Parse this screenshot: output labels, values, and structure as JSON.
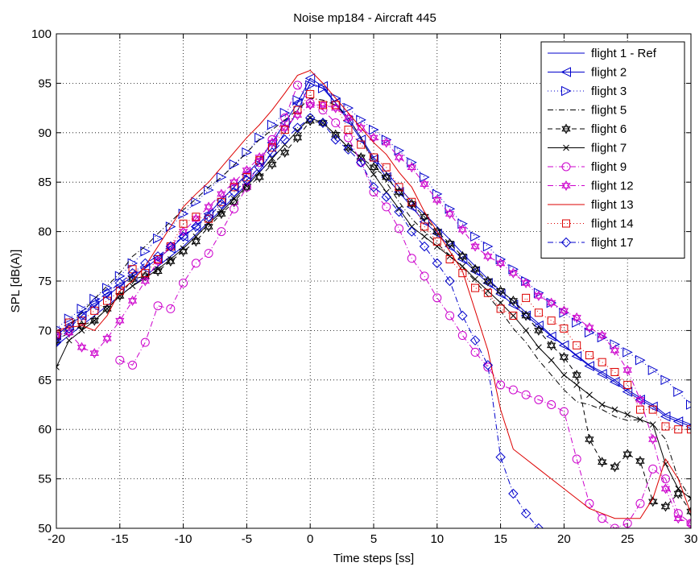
{
  "chart_data": {
    "type": "line",
    "title": "Noise mp184 - Aircraft 445",
    "xlabel": "Time steps [ss]",
    "ylabel": "SPL [dB(A)]",
    "xlim": [
      -20,
      30
    ],
    "ylim": [
      50,
      100
    ],
    "xticks": [
      -20,
      -15,
      -10,
      -5,
      0,
      5,
      10,
      15,
      20,
      25,
      30
    ],
    "yticks": [
      50,
      55,
      60,
      65,
      70,
      75,
      80,
      85,
      90,
      95,
      100
    ],
    "grid": true,
    "legend_position": "top-right",
    "series": [
      {
        "name": "flight 1 - Ref",
        "color": "#0000cc",
        "line_style": "solid",
        "marker": "none",
        "x": [
          -20,
          -19,
          -18,
          -17,
          -16,
          -15,
          -14,
          -13,
          -12,
          -11,
          -10,
          -9,
          -8,
          -7,
          -6,
          -5,
          -4,
          -3,
          -2,
          -1,
          0,
          1,
          2,
          3,
          4,
          5,
          6,
          7,
          8,
          9,
          10,
          11,
          12,
          13,
          14,
          15,
          16,
          17,
          18,
          19,
          20,
          21,
          22,
          23,
          24,
          25,
          26,
          27,
          28,
          29,
          30
        ],
        "y": [
          68.5,
          69.5,
          70.5,
          71.5,
          72.5,
          73.5,
          74.5,
          75.5,
          76.5,
          77.5,
          78.5,
          79.7,
          81,
          82.2,
          83.5,
          84.8,
          86.2,
          88,
          90,
          92.2,
          95,
          94.5,
          93,
          91.5,
          89.5,
          87.5,
          86,
          84.5,
          83,
          81.8,
          80.5,
          79.2,
          77.8,
          76.5,
          75.2,
          74,
          73,
          71.8,
          70.7,
          69.5,
          68.5,
          67.5,
          66.5,
          65.8,
          65,
          64,
          63.2,
          62.5,
          61.5,
          61,
          60.5
        ]
      },
      {
        "name": "flight 2",
        "color": "#0000cc",
        "line_style": "solid",
        "marker": "triangle-left",
        "x": [
          -20,
          -19,
          -18,
          -17,
          -16,
          -15,
          -14,
          -13,
          -12,
          -11,
          -10,
          -9,
          -8,
          -7,
          -6,
          -5,
          -4,
          -3,
          -2,
          -1,
          0,
          1,
          2,
          3,
          4,
          5,
          6,
          7,
          8,
          9,
          10,
          11,
          12,
          13,
          14,
          15,
          16,
          17,
          18,
          19,
          20,
          21,
          22,
          23,
          24,
          25,
          26,
          27,
          28,
          29,
          30
        ],
        "y": [
          69.5,
          70.5,
          71.5,
          72.5,
          73.5,
          74.5,
          75.5,
          76.3,
          77.3,
          78.3,
          79.5,
          80.5,
          81.8,
          83.2,
          84.5,
          85.8,
          87.2,
          89,
          91,
          93,
          95.5,
          94.7,
          93,
          91.2,
          89.3,
          87.3,
          85.5,
          84,
          82.5,
          81,
          79.8,
          78.5,
          77.2,
          76,
          74.8,
          73.7,
          72.6,
          71.5,
          70.5,
          69.4,
          68.5,
          67.4,
          66.4,
          65.6,
          64.8,
          63.8,
          63,
          62.3,
          61.3,
          60.8,
          60.3
        ]
      },
      {
        "name": "flight 3",
        "color": "#0000cc",
        "line_style": "dotted",
        "marker": "triangle-right",
        "x": [
          -20,
          -19,
          -18,
          -17,
          -16,
          -15,
          -14,
          -13,
          -12,
          -11,
          -10,
          -9,
          -8,
          -7,
          -6,
          -5,
          -4,
          -3,
          -2,
          -1,
          0,
          1,
          2,
          3,
          4,
          5,
          6,
          7,
          8,
          9,
          10,
          11,
          12,
          13,
          14,
          15,
          16,
          17,
          18,
          19,
          20,
          21,
          22,
          23,
          24,
          25,
          26,
          27,
          28,
          29,
          30
        ],
        "y": [
          70.2,
          71.2,
          72.2,
          73.2,
          74.3,
          75.5,
          76.8,
          78,
          79.3,
          80.5,
          81.8,
          83,
          84.2,
          85.5,
          86.8,
          88,
          89.5,
          90.8,
          92,
          93.3,
          94.8,
          94.5,
          93.5,
          92.5,
          91.3,
          90.3,
          89.3,
          88.2,
          87,
          85.5,
          83.8,
          82.3,
          80.8,
          79.5,
          78.5,
          77.2,
          76.2,
          75,
          73.8,
          72.8,
          71.8,
          70.8,
          69.8,
          69.3,
          68.6,
          67.8,
          67,
          66,
          65,
          63.8,
          62.5
        ]
      },
      {
        "name": "flight 5",
        "color": "#000000",
        "line_style": "dashdot",
        "marker": "none",
        "x": [
          -20,
          -19,
          -18,
          -17,
          -16,
          -15,
          -14,
          -13,
          -12,
          -11,
          -10,
          -9,
          -8,
          -7,
          -6,
          -5,
          -4,
          -3,
          -2,
          -1,
          0,
          1,
          2,
          3,
          4,
          5,
          6,
          7,
          8,
          9,
          10,
          11,
          12,
          13,
          14,
          15,
          16,
          17,
          18,
          19,
          20,
          21,
          22,
          23,
          24,
          25,
          26,
          27,
          28,
          29,
          30
        ],
        "y": [
          69,
          70.5,
          71.8,
          73.2,
          74.5,
          75.8,
          77.5,
          78.5,
          79.8,
          81,
          82.2,
          83.3,
          84.5,
          85.5,
          86.7,
          88,
          89.3,
          90.3,
          91.3,
          92.3,
          93.5,
          93.3,
          92.8,
          91.5,
          89.5,
          87,
          85,
          83,
          81.3,
          80,
          78.8,
          77.6,
          76.4,
          75,
          73.5,
          72,
          70.2,
          68.8,
          67,
          65.5,
          64,
          62.8,
          62.5,
          62,
          61.3,
          60.9,
          61,
          60.5,
          59,
          55,
          53
        ]
      },
      {
        "name": "flight 6",
        "color": "#000000",
        "line_style": "dashed",
        "marker": "hexagram",
        "x": [
          -20,
          -19,
          -18,
          -17,
          -16,
          -15,
          -14,
          -13,
          -12,
          -11,
          -10,
          -9,
          -8,
          -7,
          -6,
          -5,
          -4,
          -3,
          -2,
          -1,
          0,
          1,
          2,
          3,
          4,
          5,
          6,
          7,
          8,
          9,
          10,
          11,
          12,
          13,
          14,
          15,
          16,
          17,
          18,
          19,
          20,
          21,
          22,
          23,
          24,
          25,
          26,
          27,
          28,
          29,
          30
        ],
        "y": [
          69,
          69.8,
          70.5,
          71,
          72.2,
          73.5,
          75.2,
          75.5,
          76,
          77,
          78,
          79,
          80.5,
          81.8,
          83,
          84.5,
          85.5,
          86.8,
          88,
          89.5,
          91.2,
          91,
          89.8,
          88.5,
          87.5,
          86.5,
          85.5,
          84,
          82.8,
          81.5,
          80,
          78.8,
          77.5,
          76.2,
          75,
          74,
          73,
          71.5,
          70,
          68.5,
          67.3,
          65.5,
          59,
          56.7,
          56.2,
          57.5,
          56.8,
          52.7,
          52.2,
          53.5,
          51.7
        ]
      },
      {
        "name": "flight 7",
        "color": "#000000",
        "line_style": "solid",
        "marker": "x",
        "x": [
          -20,
          -19,
          -18,
          -17,
          -16,
          -15,
          -14,
          -13,
          -12,
          -11,
          -10,
          -9,
          -8,
          -7,
          -6,
          -5,
          -4,
          -3,
          -2,
          -1,
          0,
          1,
          2,
          3,
          4,
          5,
          6,
          7,
          8,
          9,
          10,
          11,
          12,
          13,
          14,
          15,
          16,
          17,
          18,
          19,
          20,
          21,
          22,
          23,
          24,
          25,
          26,
          27,
          28,
          29,
          30
        ],
        "y": [
          66.3,
          69,
          70,
          71,
          72.2,
          73.5,
          74.5,
          75.3,
          76.2,
          77.2,
          78.3,
          79.5,
          80.8,
          82,
          83.3,
          84.6,
          86,
          87.4,
          88.8,
          90.2,
          91.5,
          91,
          89.8,
          88.5,
          87.5,
          85.8,
          84,
          82.3,
          80.5,
          79.5,
          78.5,
          77.5,
          76.5,
          75.2,
          74,
          72.8,
          71.5,
          70,
          68.3,
          67,
          65.5,
          64.5,
          63.5,
          62.5,
          62,
          61.5,
          61,
          60.5,
          56.5,
          54,
          53
        ]
      },
      {
        "name": "flight 9",
        "color": "#cc00cc",
        "line_style": "dashdot",
        "marker": "circle",
        "x": [
          -15,
          -14,
          -13,
          -12,
          -11,
          -10,
          -9,
          -8,
          -7,
          -6,
          -5,
          -4,
          -3,
          -2,
          -1,
          0,
          1,
          2,
          3,
          4,
          5,
          6,
          7,
          8,
          9,
          10,
          11,
          12,
          13,
          14,
          15,
          16,
          17,
          18,
          19,
          20,
          21,
          22,
          23,
          24,
          25,
          26,
          27,
          28,
          29,
          30
        ],
        "y": [
          67,
          66.5,
          68.8,
          72.5,
          72.2,
          74.8,
          76.8,
          77.8,
          80,
          82.3,
          84.5,
          87,
          89.3,
          91.5,
          94.8,
          93,
          92.3,
          91,
          89.5,
          87,
          84,
          82.5,
          80.3,
          77.3,
          75.5,
          73.3,
          71.5,
          69.5,
          67.8,
          66.3,
          64.5,
          64,
          63.5,
          63,
          62.5,
          61.8,
          57,
          52.5,
          51,
          50,
          50.5,
          52.5,
          56,
          55,
          51.5,
          50.5
        ]
      },
      {
        "name": "flight 12",
        "color": "#cc00cc",
        "line_style": "dashdot",
        "marker": "hexagram",
        "x": [
          -20,
          -19,
          -18,
          -17,
          -16,
          -15,
          -14,
          -13,
          -12,
          -11,
          -10,
          -9,
          -8,
          -7,
          -6,
          -5,
          -4,
          -3,
          -2,
          -1,
          0,
          1,
          2,
          3,
          4,
          5,
          6,
          7,
          8,
          9,
          10,
          11,
          12,
          13,
          14,
          15,
          16,
          17,
          18,
          19,
          20,
          21,
          22,
          23,
          24,
          25,
          26,
          27,
          28,
          29,
          30
        ],
        "y": [
          69.5,
          69.8,
          68.3,
          67.7,
          69.2,
          71,
          73,
          75,
          77,
          78.5,
          80,
          81.3,
          82.5,
          83.8,
          85,
          86.2,
          87.5,
          89,
          90.5,
          91.8,
          92.8,
          92.8,
          92.5,
          91.5,
          90.5,
          89.5,
          89,
          87.5,
          86.5,
          84.8,
          83.2,
          81.8,
          80.2,
          78.5,
          77.5,
          76.8,
          75.8,
          74.8,
          73.5,
          72.8,
          72,
          71.3,
          70.3,
          69.5,
          68,
          66,
          63,
          59,
          54,
          51,
          50.5
        ]
      },
      {
        "name": "flight 13",
        "color": "#dd0000",
        "line_style": "solid",
        "marker": "none",
        "x": [
          -20,
          -19,
          -18,
          -17,
          -16,
          -15,
          -14,
          -13,
          -12,
          -11,
          -10,
          -9,
          -8,
          -7,
          -6,
          -5,
          -4,
          -3,
          -2,
          -1,
          0,
          1,
          2,
          3,
          4,
          5,
          6,
          7,
          8,
          9,
          10,
          11,
          12,
          13,
          14,
          15,
          16,
          17,
          18,
          19,
          20,
          21,
          22,
          23,
          24,
          25,
          26,
          27,
          28,
          29,
          30
        ],
        "y": [
          70,
          70.3,
          70.5,
          70,
          71.5,
          74,
          75,
          76.5,
          78.5,
          80.5,
          82.5,
          83.8,
          85,
          86.5,
          88,
          89.5,
          90.8,
          92.3,
          94,
          95.8,
          96.3,
          95,
          93.5,
          92,
          90.5,
          89,
          87.8,
          86,
          84.5,
          82,
          80,
          78,
          76,
          72,
          68,
          62,
          58,
          57,
          56,
          55,
          54,
          53,
          52,
          51.5,
          51,
          51,
          51,
          53,
          57,
          55,
          51.5
        ]
      },
      {
        "name": "flight 14",
        "color": "#dd0000",
        "line_style": "dotted",
        "marker": "square",
        "x": [
          -20,
          -19,
          -18,
          -17,
          -16,
          -15,
          -14,
          -13,
          -12,
          -11,
          -10,
          -9,
          -8,
          -7,
          -6,
          -5,
          -4,
          -3,
          -2,
          -1,
          0,
          1,
          2,
          3,
          4,
          5,
          6,
          7,
          8,
          9,
          10,
          11,
          12,
          13,
          14,
          15,
          16,
          17,
          18,
          19,
          20,
          21,
          22,
          23,
          24,
          25,
          26,
          27,
          28,
          29,
          30
        ],
        "y": [
          69.5,
          70.8,
          71,
          72,
          73,
          74,
          76.2,
          75.8,
          77.2,
          78.5,
          80.8,
          81.5,
          81.3,
          83,
          84.5,
          85.5,
          87.2,
          88.5,
          90.3,
          92.3,
          93.9,
          92.8,
          92.8,
          90.3,
          88.8,
          87.5,
          86.5,
          84.5,
          83,
          80.5,
          79,
          77.2,
          75.8,
          74.3,
          73.8,
          72.2,
          71.5,
          73.3,
          71.8,
          71,
          70.2,
          68.5,
          67.5,
          66.8,
          65.8,
          64.5,
          62,
          62,
          60.3,
          60,
          60
        ]
      },
      {
        "name": "flight 17",
        "color": "#0000cc",
        "line_style": "dashdot",
        "marker": "diamond",
        "x": [
          -20,
          -19,
          -18,
          -17,
          -16,
          -15,
          -14,
          -13,
          -12,
          -11,
          -10,
          -9,
          -8,
          -7,
          -6,
          -5,
          -4,
          -3,
          -2,
          -1,
          0,
          1,
          2,
          3,
          4,
          5,
          6,
          7,
          8,
          9,
          10,
          11,
          12,
          13,
          14,
          15,
          16,
          17,
          18
        ],
        "y": [
          68.8,
          70.2,
          71.5,
          72.8,
          73.8,
          74.8,
          75.8,
          76.8,
          77.5,
          78.5,
          79.5,
          80.5,
          81.5,
          82.8,
          84,
          85.2,
          86.5,
          88,
          89.3,
          90.5,
          91.5,
          91,
          89.3,
          88.3,
          87,
          84.5,
          83.5,
          82,
          80,
          78.5,
          76.8,
          75,
          71.5,
          69,
          66.5,
          57.2,
          53.5,
          51.5,
          50
        ]
      }
    ]
  }
}
